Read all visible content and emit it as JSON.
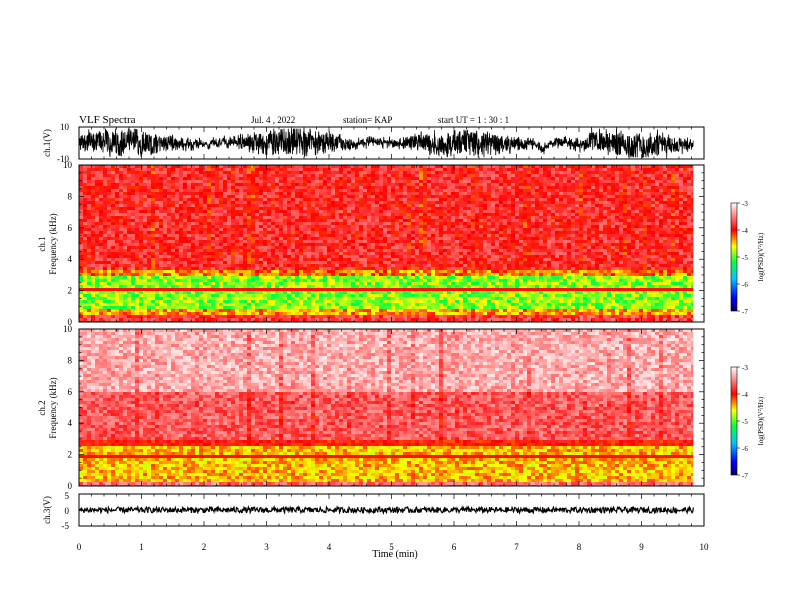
{
  "header": {
    "title": "VLF Spectra",
    "date": "Jul. 4 , 2022",
    "station": "station= KAP",
    "start": "start UT = 1 : 30 : 1"
  },
  "chart_data": [
    {
      "type": "line",
      "name": "ch1-waveform",
      "ylabel": "ch.1(V)",
      "ylim": [
        -10,
        10
      ],
      "y_ticks": [
        "10",
        "-10"
      ],
      "xlim": [
        0,
        10
      ]
    },
    {
      "type": "heatmap",
      "name": "ch1-spectrogram",
      "ylabel": "ch.1",
      "ylabel2": "Frequency (kHz)",
      "ylim": [
        0,
        10
      ],
      "y_ticks": [
        "0",
        "2",
        "4",
        "6",
        "8",
        "10"
      ],
      "xlim": [
        0,
        10
      ],
      "colorbar": {
        "label": "log(PSD)(V²/Hz)",
        "ticks": [
          "-3",
          "-4",
          "-5",
          "-6",
          "-7"
        ],
        "range": [
          -7,
          -3
        ]
      }
    },
    {
      "type": "heatmap",
      "name": "ch2-spectrogram",
      "ylabel": "ch.2",
      "ylabel2": "Frequency (kHz)",
      "ylim": [
        0,
        10
      ],
      "y_ticks": [
        "0",
        "2",
        "4",
        "6",
        "8",
        "10"
      ],
      "xlim": [
        0,
        10
      ],
      "colorbar": {
        "label": "log(PSD)(V²/Hz)",
        "ticks": [
          "-3",
          "-4",
          "-5",
          "-6",
          "-7"
        ],
        "range": [
          -7,
          -3
        ]
      }
    },
    {
      "type": "line",
      "name": "ch3-waveform",
      "ylabel": "ch.3(V)",
      "ylim": [
        -5,
        5
      ],
      "y_ticks": [
        "5",
        "0",
        "-5"
      ],
      "xlim": [
        0,
        10
      ],
      "xlabel": "Time (min)",
      "x_ticks": [
        "0",
        "1",
        "2",
        "3",
        "4",
        "5",
        "6",
        "7",
        "8",
        "9",
        "10"
      ]
    }
  ],
  "colors": {
    "cmap": [
      "#000080",
      "#0000ff",
      "#00ffff",
      "#00ff00",
      "#ffff00",
      "#ff0000",
      "#ffffff"
    ],
    "trace": "#000000"
  }
}
